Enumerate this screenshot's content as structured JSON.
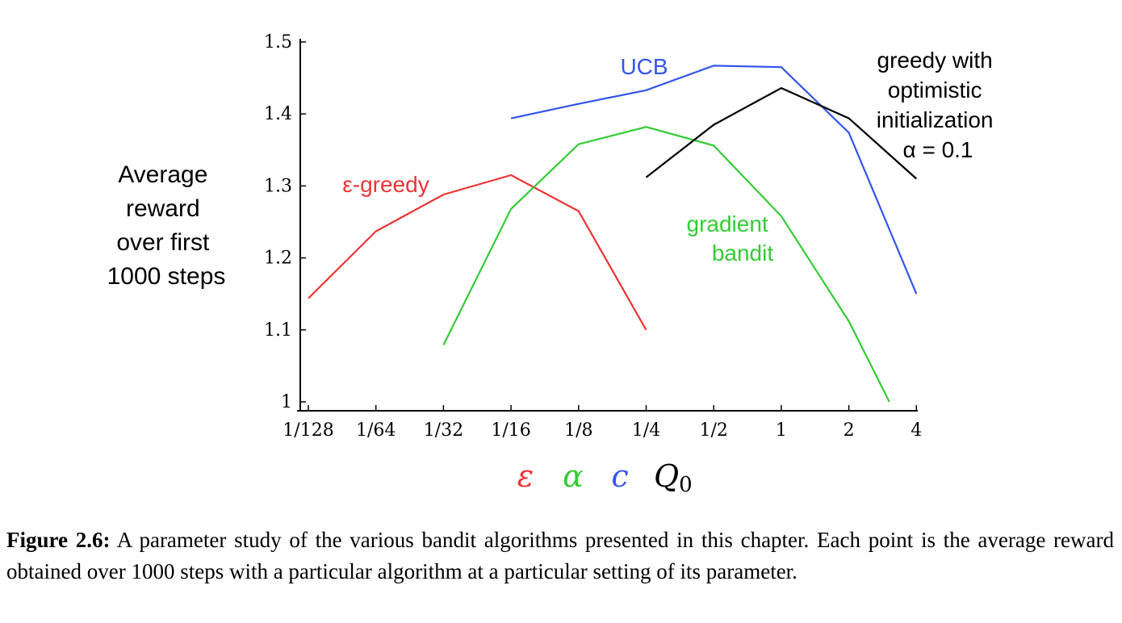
{
  "chart_data": {
    "type": "line",
    "ylabel_lines": [
      "Average",
      "reward",
      "over first",
      "1000 steps"
    ],
    "ylim": [
      1.0,
      1.5
    ],
    "yticks": [
      1,
      1.1,
      1.2,
      1.3,
      1.4,
      1.5
    ],
    "ytick_labels": [
      "1",
      "1.1",
      "1.2",
      "1.3",
      "1.4",
      "1.5"
    ],
    "categories": [
      "1/128",
      "1/64",
      "1/32",
      "1/16",
      "1/8",
      "1/4",
      "1/2",
      "1",
      "2",
      "4"
    ],
    "series": [
      {
        "name": "ε-greedy",
        "label": "ε-greedy",
        "color": "#ee3333",
        "points": [
          {
            "x": 0,
            "y": 1.144
          },
          {
            "x": 1,
            "y": 1.237
          },
          {
            "x": 2,
            "y": 1.288
          },
          {
            "x": 3,
            "y": 1.315
          },
          {
            "x": 4,
            "y": 1.265
          },
          {
            "x": 5,
            "y": 1.1
          }
        ]
      },
      {
        "name": "gradient bandit",
        "label_lines": [
          "gradient",
          "bandit"
        ],
        "color": "#33cc33",
        "points": [
          {
            "x": 2,
            "y": 1.079
          },
          {
            "x": 3,
            "y": 1.268
          },
          {
            "x": 4,
            "y": 1.358
          },
          {
            "x": 5,
            "y": 1.382
          },
          {
            "x": 6,
            "y": 1.356
          },
          {
            "x": 7,
            "y": 1.258
          },
          {
            "x": 8,
            "y": 1.112
          },
          {
            "x": 8.6,
            "y": 1.0
          }
        ]
      },
      {
        "name": "UCB",
        "label": "UCB",
        "color": "#3355ee",
        "points": [
          {
            "x": 3,
            "y": 1.394
          },
          {
            "x": 4,
            "y": 1.414
          },
          {
            "x": 5,
            "y": 1.433
          },
          {
            "x": 6,
            "y": 1.467
          },
          {
            "x": 7,
            "y": 1.465
          },
          {
            "x": 8,
            "y": 1.374
          },
          {
            "x": 9,
            "y": 1.15
          }
        ]
      },
      {
        "name": "greedy with optimistic initialization α = 0.1",
        "label_lines": [
          "greedy with",
          "optimistic",
          "initialization",
          "α = 0.1"
        ],
        "color": "#000000",
        "points": [
          {
            "x": 5,
            "y": 1.312
          },
          {
            "x": 6,
            "y": 1.385
          },
          {
            "x": 7,
            "y": 1.436
          },
          {
            "x": 8,
            "y": 1.394
          },
          {
            "x": 9,
            "y": 1.31
          }
        ]
      }
    ],
    "xaxis_params": [
      {
        "symbol": "ε",
        "color": "#ee3333"
      },
      {
        "symbol": "α",
        "color": "#33cc33"
      },
      {
        "symbol": "c",
        "color": "#3355ee"
      },
      {
        "symbol": "Q",
        "sub": "0",
        "color": "#000000"
      }
    ]
  },
  "caption": {
    "label": "Figure 2.6:",
    "text": "A parameter study of the various bandit algorithms presented in this chapter. Each point is the average reward obtained over 1000 steps with a particular algorithm at a particular setting of its parameter."
  }
}
